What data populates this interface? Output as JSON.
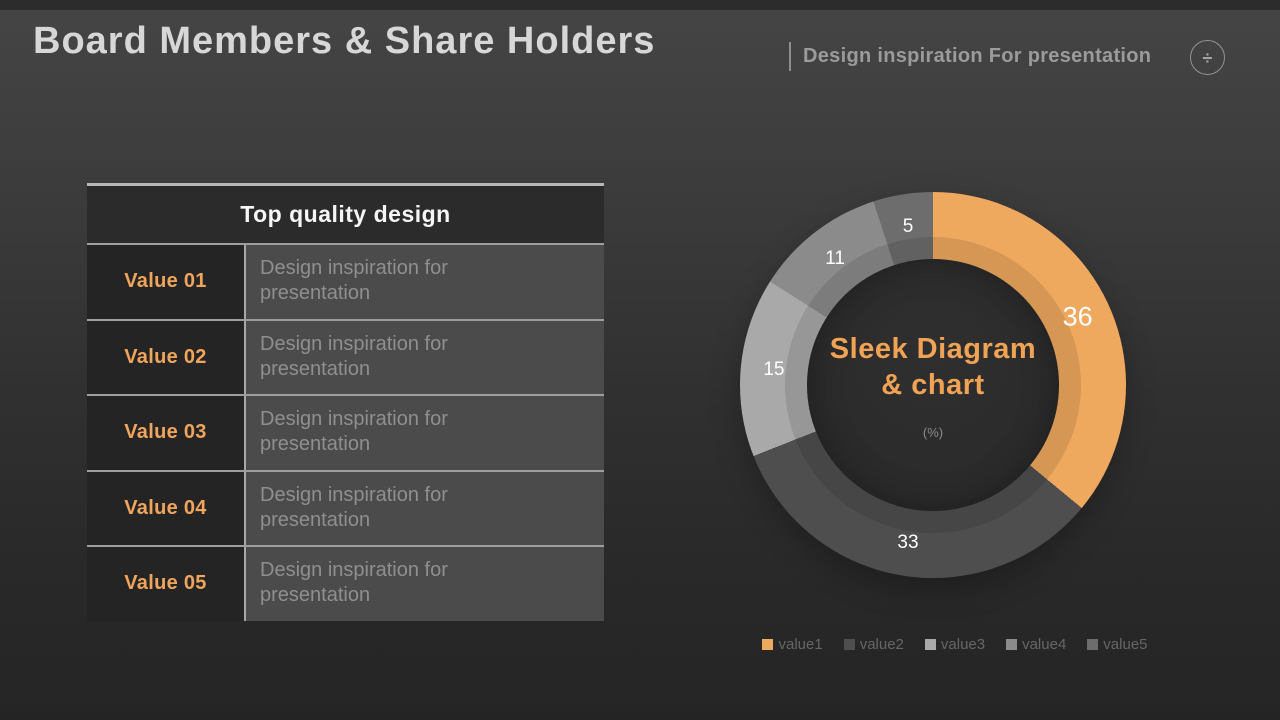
{
  "header": {
    "title": "Board Members & Share Holders",
    "subtitle": "Design inspiration For presentation",
    "icon_symbol": "÷"
  },
  "table": {
    "header": "Top quality design",
    "rows": [
      {
        "label": "Value 01",
        "text": "Design inspiration for presentation"
      },
      {
        "label": "Value 02",
        "text": "Design inspiration for presentation"
      },
      {
        "label": "Value 03",
        "text": "Design inspiration for presentation"
      },
      {
        "label": "Value 04",
        "text": "Design inspiration for presentation"
      },
      {
        "label": "Value 05",
        "text": "Design inspiration for presentation"
      }
    ]
  },
  "chart_data": {
    "type": "pie",
    "subtype": "donut",
    "categories": [
      "value1",
      "value2",
      "value3",
      "value4",
      "value5"
    ],
    "values": [
      36,
      33,
      15,
      11,
      5
    ],
    "unit": "%",
    "colors": [
      "#EFA95F",
      "#4E4E4E",
      "#A9A9A9",
      "#8B8B8B",
      "#6D6D6D"
    ],
    "title": "Sleek Diagram & chart",
    "center_title_line1": "Sleek Diagram",
    "center_title_line2": "& chart",
    "center_unit_label": "(%)",
    "legend_position": "bottom",
    "data_labels": true,
    "start_angle_deg": 0,
    "direction": "clockwise"
  },
  "colors": {
    "accent_orange": "#EFA95F",
    "title_gray": "#D7D7D7",
    "background_dark": "#262626"
  }
}
